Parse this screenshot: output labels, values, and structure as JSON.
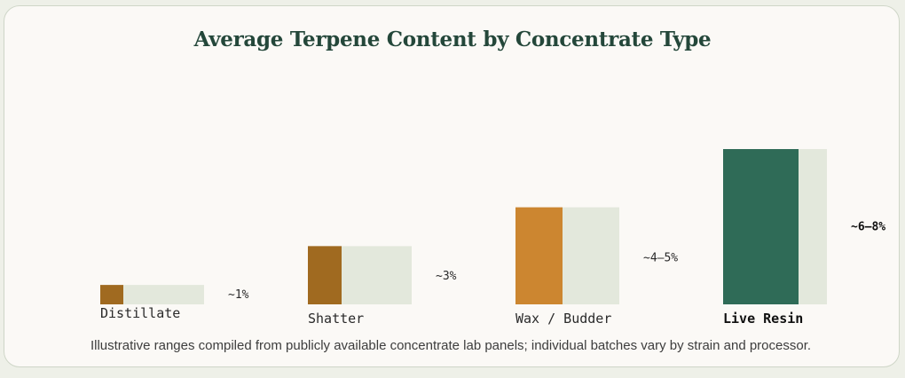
{
  "chart_data": {
    "type": "bar",
    "title": "Average Terpene Content by Concentrate Type",
    "categories": [
      "Distillate",
      "Shatter",
      "Wax / Budder",
      "Live Resin"
    ],
    "values": [
      1,
      3,
      4.5,
      7
    ],
    "range_max": [
      1,
      3,
      5,
      8
    ],
    "value_labels": [
      "~1%",
      "~3%",
      "~4–5%",
      "~6–8%"
    ],
    "colors": [
      "#a06a20",
      "#a06a20",
      "#cc8630",
      "#2f6b57"
    ],
    "track_color": "#e3e8dc",
    "highlight_category": "Live Resin",
    "unit": "%",
    "caption": "Illustrative ranges compiled from publicly available concentrate lab panels; individual batches vary by strain and processor."
  }
}
